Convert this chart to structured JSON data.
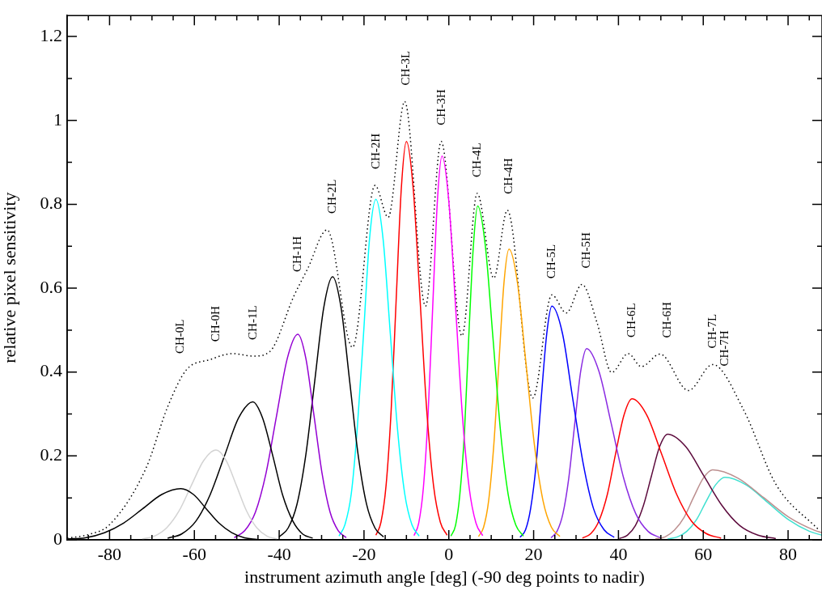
{
  "chart_data": {
    "type": "line",
    "xlabel": "instrument azimuth angle [deg] (-90 deg points to nadir)",
    "ylabel": "relative pixel sensitivity",
    "xlim": [
      -90,
      88
    ],
    "ylim": [
      0,
      1.25
    ],
    "xticks": [
      {
        "value": -85,
        "label": null
      },
      -80,
      {
        "value": -75,
        "label": null
      },
      {
        "value": -70,
        "label": null
      },
      {
        "value": -65,
        "label": null
      },
      -60,
      {
        "value": -55,
        "label": null
      },
      {
        "value": -50,
        "label": null
      },
      {
        "value": -45,
        "label": null
      },
      -40,
      {
        "value": -35,
        "label": null
      },
      {
        "value": -30,
        "label": null
      },
      {
        "value": -25,
        "label": null
      },
      -20,
      {
        "value": -15,
        "label": null
      },
      {
        "value": -10,
        "label": null
      },
      {
        "value": -5,
        "label": null
      },
      0,
      {
        "value": 5,
        "label": null
      },
      {
        "value": 10,
        "label": null
      },
      {
        "value": 15,
        "label": null
      },
      20,
      {
        "value": 25,
        "label": null
      },
      {
        "value": 30,
        "label": null
      },
      {
        "value": 35,
        "label": null
      },
      40,
      {
        "value": 45,
        "label": null
      },
      {
        "value": 50,
        "label": null
      },
      {
        "value": 55,
        "label": null
      },
      60,
      {
        "value": 65,
        "label": null
      },
      {
        "value": 70,
        "label": null
      },
      {
        "value": 75,
        "label": null
      },
      80,
      {
        "value": 85,
        "label": null
      }
    ],
    "yticks": [
      0,
      {
        "value": 0.1,
        "label": null
      },
      0.2,
      {
        "value": 0.3,
        "label": null
      },
      0.4,
      {
        "value": 0.5,
        "label": null
      },
      0.6,
      {
        "value": 0.7,
        "label": null
      },
      0.8,
      {
        "value": 0.9,
        "label": null
      },
      1,
      {
        "value": 1.1,
        "label": null
      },
      1.2
    ],
    "marker": "none",
    "line_style": "solid",
    "annotations": [
      "CH-0L",
      "CH-0H",
      "CH-1L",
      "CH-1H",
      "CH-2L",
      "CH-2H",
      "CH-3L",
      "CH-3H",
      "CH-4L",
      "CH-4H",
      "CH-5L",
      "CH-5H",
      "CH-6L",
      "CH-6H",
      "CH-7L",
      "CH-7H"
    ],
    "series": [
      {
        "color": "#000000",
        "x": [
          -90,
          -85.7,
          -81.2,
          -76.7,
          -72.2,
          -67.7,
          -63.2,
          -60.2,
          -57.2,
          -54.2,
          -51.2,
          -48.2,
          -45.2
        ],
        "values": [
          0.002,
          0.005,
          0.017,
          0.04,
          0.074,
          0.108,
          0.122,
          0.108,
          0.074,
          0.04,
          0.017,
          0.005,
          0.001
        ]
      },
      {
        "color": "#d3d3d3",
        "x": [
          -72.3,
          -69.4,
          -66.5,
          -63.6,
          -60.7,
          -57.8,
          -54.9,
          -52.5,
          -50.1,
          -47.7,
          -45.3,
          -42.9,
          -40.5
        ],
        "values": [
          0.002,
          0.009,
          0.029,
          0.069,
          0.13,
          0.189,
          0.214,
          0.189,
          0.13,
          0.069,
          0.029,
          0.009,
          0.002
        ]
      },
      {
        "color": "#000000",
        "x": [
          -66.3,
          -63.0,
          -59.6,
          -56.3,
          -52.9,
          -49.6,
          -46.2,
          -43.9,
          -41.5,
          -39.2,
          -36.8,
          -34.5,
          -32.1
        ],
        "values": [
          0.004,
          0.014,
          0.045,
          0.107,
          0.2,
          0.29,
          0.329,
          0.29,
          0.2,
          0.107,
          0.045,
          0.014,
          0.004
        ]
      },
      {
        "color": "#9400d3",
        "x": [
          -50.6,
          -48.1,
          -45.6,
          -43.1,
          -40.6,
          -38.1,
          -35.6,
          -33.7,
          -31.8,
          -29.9,
          -28.0,
          -26.1,
          -24.2
        ],
        "values": [
          0.005,
          0.022,
          0.066,
          0.159,
          0.297,
          0.432,
          0.49,
          0.432,
          0.297,
          0.159,
          0.066,
          0.022,
          0.005
        ]
      },
      {
        "color": "#000000",
        "x": [
          -40.0,
          -37.9,
          -35.8,
          -33.7,
          -31.6,
          -29.5,
          -27.4,
          -25.4,
          -23.4,
          -21.4,
          -19.4,
          -17.4,
          -15.4
        ],
        "values": [
          0.007,
          0.028,
          0.085,
          0.204,
          0.38,
          0.553,
          0.627,
          0.553,
          0.38,
          0.204,
          0.085,
          0.028,
          0.007
        ]
      },
      {
        "color": "#00ffff",
        "x": [
          -25.9,
          -24.5,
          -23.0,
          -21.6,
          -20.1,
          -18.7,
          -17.2,
          -15.5,
          -13.8,
          -12.1,
          -10.4,
          -8.7,
          -7.0
        ],
        "values": [
          0.009,
          0.036,
          0.11,
          0.264,
          0.492,
          0.717,
          0.812,
          0.717,
          0.492,
          0.264,
          0.11,
          0.036,
          0.009
        ]
      },
      {
        "color": "#ff0000",
        "x": [
          -17.2,
          -16.0,
          -14.8,
          -13.6,
          -12.4,
          -11.2,
          -10.0,
          -8.4,
          -6.8,
          -5.2,
          -3.6,
          -2.0,
          -0.4
        ],
        "values": [
          0.011,
          0.042,
          0.129,
          0.308,
          0.576,
          0.838,
          0.95,
          0.838,
          0.576,
          0.308,
          0.129,
          0.042,
          0.011
        ]
      },
      {
        "color": "#ff00ff",
        "x": [
          -8.2,
          -7.1,
          -6.0,
          -4.9,
          -3.8,
          -2.7,
          -1.6,
          0.0,
          1.6,
          3.2,
          4.8,
          6.4,
          8.0
        ],
        "values": [
          0.01,
          0.04,
          0.124,
          0.297,
          0.555,
          0.807,
          0.915,
          0.807,
          0.555,
          0.297,
          0.124,
          0.04,
          0.01
        ]
      },
      {
        "color": "#00ff00",
        "x": [
          0.5,
          1.6,
          2.6,
          3.7,
          4.7,
          5.8,
          6.8,
          8.6,
          10.4,
          12.2,
          14.0,
          15.8,
          17.6
        ],
        "values": [
          0.009,
          0.035,
          0.108,
          0.258,
          0.483,
          0.702,
          0.796,
          0.702,
          0.483,
          0.258,
          0.108,
          0.035,
          0.009
        ]
      },
      {
        "color": "#ffa500",
        "x": [
          7.0,
          8.2,
          9.4,
          10.6,
          11.8,
          13.0,
          14.2,
          16.2,
          18.2,
          20.2,
          22.2,
          24.2,
          26.2
        ],
        "values": [
          0.008,
          0.03,
          0.094,
          0.225,
          0.42,
          0.612,
          0.693,
          0.612,
          0.42,
          0.225,
          0.094,
          0.03,
          0.008
        ]
      },
      {
        "color": "#0000ff",
        "x": [
          16.8,
          18.1,
          19.3,
          20.6,
          21.8,
          23.1,
          24.3,
          26.8,
          29.2,
          31.7,
          34.1,
          36.6,
          39.0
        ],
        "values": [
          0.006,
          0.024,
          0.075,
          0.181,
          0.338,
          0.492,
          0.557,
          0.492,
          0.338,
          0.181,
          0.075,
          0.024,
          0.006
        ]
      },
      {
        "color": "#8a2be2",
        "x": [
          24.1,
          25.5,
          26.9,
          28.3,
          29.7,
          31.1,
          32.5,
          35.4,
          38.3,
          41.2,
          44.1,
          47.0,
          49.9
        ],
        "values": [
          0.005,
          0.02,
          0.062,
          0.148,
          0.277,
          0.402,
          0.456,
          0.402,
          0.277,
          0.148,
          0.062,
          0.02,
          0.005
        ]
      },
      {
        "color": "#ff0000",
        "x": [
          31.5,
          33.5,
          35.4,
          37.4,
          39.3,
          41.3,
          43.2,
          46.7,
          50.2,
          53.7,
          57.2,
          60.7,
          64.2
        ],
        "values": [
          0.004,
          0.015,
          0.045,
          0.109,
          0.204,
          0.297,
          0.336,
          0.297,
          0.204,
          0.109,
          0.045,
          0.015,
          0.004
        ]
      },
      {
        "color": "#5c0a3c",
        "x": [
          40.2,
          42.1,
          44.0,
          45.9,
          47.8,
          49.7,
          51.6,
          55.9,
          60.1,
          64.4,
          68.6,
          72.9,
          77.1
        ],
        "values": [
          0.003,
          0.011,
          0.034,
          0.082,
          0.153,
          0.222,
          0.252,
          0.222,
          0.153,
          0.082,
          0.034,
          0.011,
          0.003
        ]
      },
      {
        "color": "#bc8f8f",
        "x": [
          48.7,
          51.0,
          53.2,
          55.5,
          57.7,
          60.0,
          62.2,
          68.2,
          74.2,
          80.2,
          86.2,
          88
        ],
        "values": [
          0.002,
          0.007,
          0.023,
          0.054,
          0.101,
          0.147,
          0.167,
          0.147,
          0.101,
          0.054,
          0.023,
          0.017
        ]
      },
      {
        "color": "#40e0d0",
        "x": [
          51.6,
          53.9,
          56.1,
          58.4,
          60.6,
          62.9,
          65.1,
          70.1,
          75.1,
          80.1,
          85.1,
          88
        ],
        "values": [
          0.002,
          0.007,
          0.02,
          0.048,
          0.09,
          0.131,
          0.149,
          0.131,
          0.09,
          0.048,
          0.02,
          0.011
        ]
      },
      {
        "color": "#000000",
        "line_style": "dotted",
        "x": [
          -90,
          -84.8,
          -80,
          -71.4,
          -66.3,
          -61.9,
          -56.2,
          -51.1,
          -46.0,
          -42.2,
          -36.5,
          -33.3,
          -28.7,
          -22.7,
          -17.4,
          -14.3,
          -10.4,
          -5.5,
          -1.8,
          3.1,
          6.7,
          10.6,
          13.8,
          19.8,
          24.3,
          27.7,
          31.4,
          35.0,
          38.4,
          42.3,
          45.4,
          49.8,
          56.5,
          62.2,
          69.5,
          77.1,
          87.3
        ],
        "values": [
          0.004,
          0.013,
          0.036,
          0.171,
          0.317,
          0.405,
          0.43,
          0.444,
          0.438,
          0.449,
          0.582,
          0.646,
          0.739,
          0.459,
          0.845,
          0.769,
          1.045,
          0.557,
          0.95,
          0.486,
          0.826,
          0.624,
          0.786,
          0.338,
          0.584,
          0.541,
          0.609,
          0.516,
          0.399,
          0.444,
          0.413,
          0.443,
          0.356,
          0.418,
          0.31,
          0.133,
          0.023
        ]
      }
    ]
  }
}
